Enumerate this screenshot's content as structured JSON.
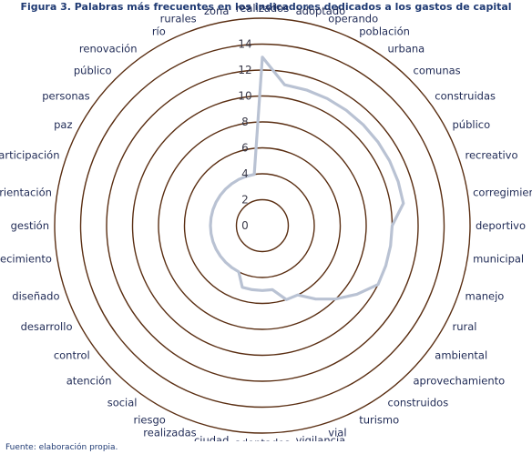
{
  "title": "Figura 3. Palabras más frecuentes en los indicadores dedicados a los gastos de capital",
  "source": "Fuente: elaboración propia.",
  "chart_data": {
    "type": "radar",
    "title": "Figura 3. Palabras más frecuentes en los indicadores dedicados a los gastos de capital",
    "r_ticks": [
      0,
      2,
      4,
      6,
      8,
      10,
      12,
      14
    ],
    "r_range": [
      0,
      14
    ],
    "grid": true,
    "colors": {
      "series": "#b9c2d3",
      "grid": "#5a2e12",
      "tick_label": "#3b3b4a",
      "title": "#1f3a73",
      "category_label": "#1f2a55"
    },
    "categories": [
      "realizados",
      "adoptado",
      "operando",
      "población",
      "urbana",
      "comunas",
      "construidas",
      "público",
      "recreativo",
      "corregimientos",
      "deportivo",
      "municipal",
      "manejo",
      "rural",
      "ambiental",
      "aprovechamiento",
      "construidos",
      "turismo",
      "vial",
      "vigilancia",
      "adoptados",
      "ciudad",
      "realizadas",
      "riesgo",
      "social",
      "atención",
      "control",
      "desarrollo",
      "diseñado",
      "fortalecimiento",
      "gestión",
      "orientación",
      "participación",
      "paz",
      "personas",
      "público",
      "renovación",
      "río",
      "rurales",
      "zona"
    ],
    "series": [
      {
        "values": [
          13,
          11,
          11,
          11,
          11,
          11,
          11,
          11,
          11,
          11,
          10,
          10,
          10,
          10,
          9,
          8,
          7,
          6,
          6,
          5,
          5,
          5,
          5,
          4,
          4,
          4,
          4,
          4,
          4,
          4,
          4,
          4,
          4,
          4,
          4,
          4,
          4,
          4,
          4,
          4
        ]
      }
    ]
  }
}
